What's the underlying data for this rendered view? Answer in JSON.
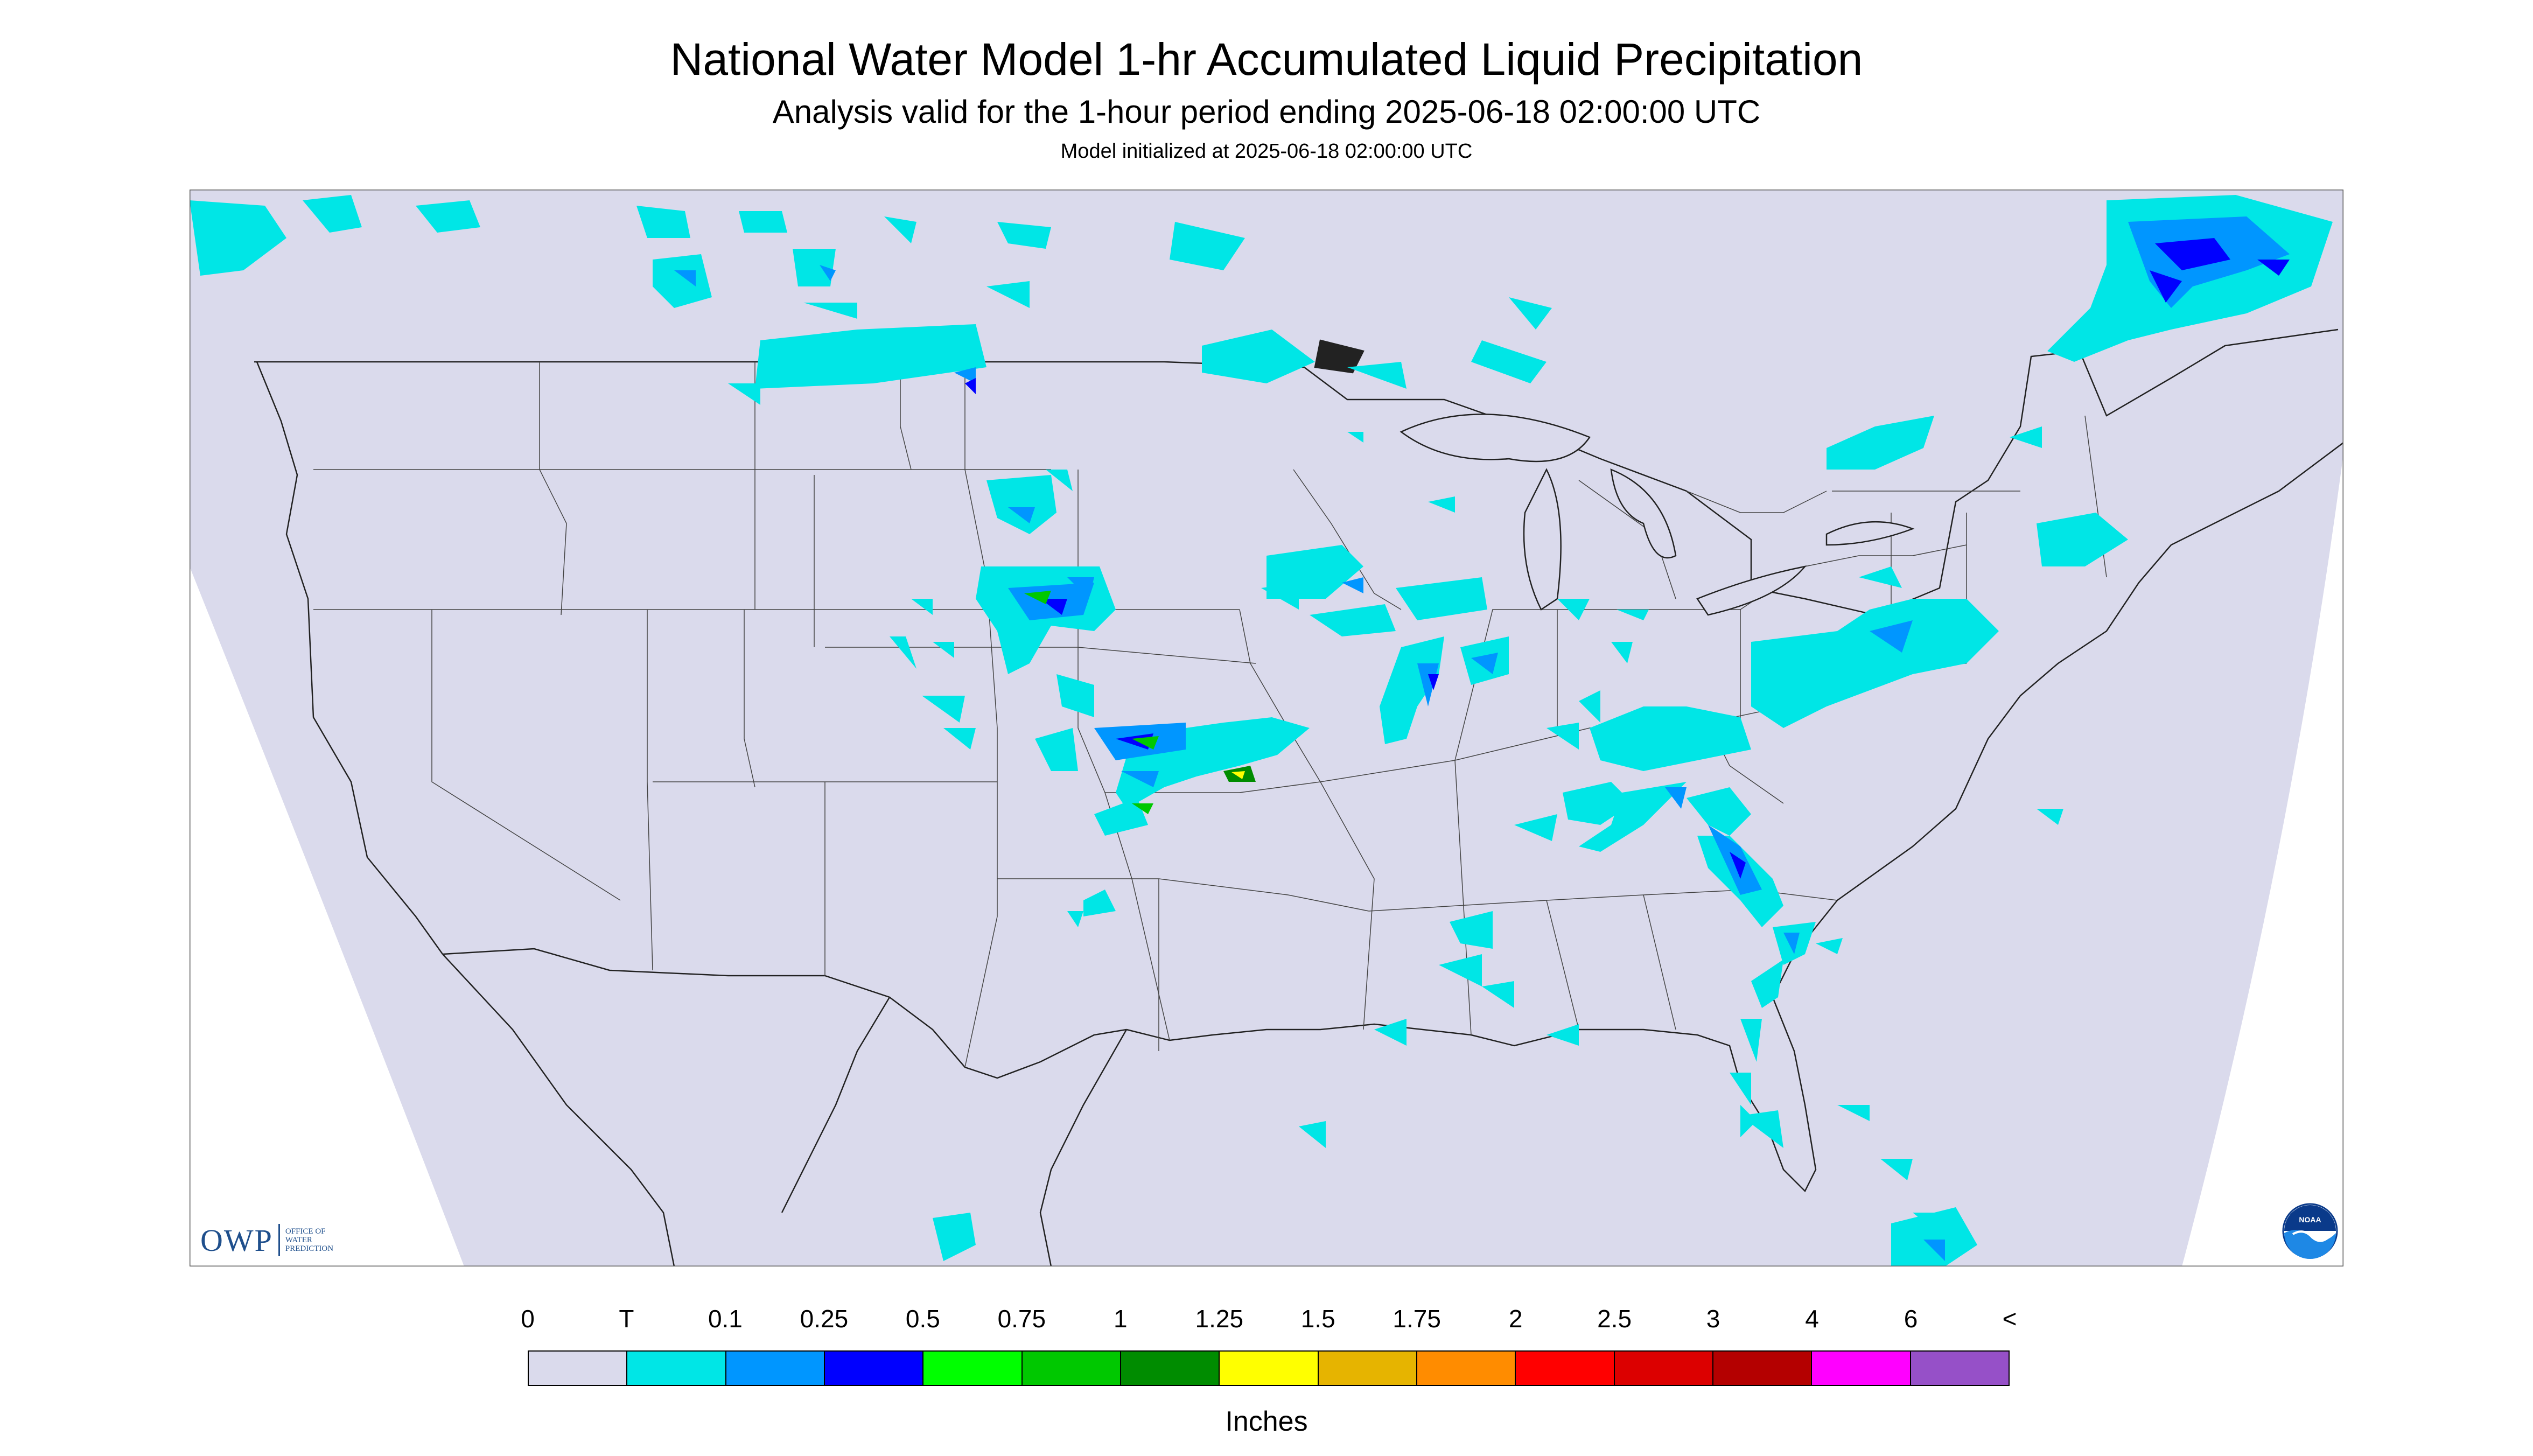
{
  "header": {
    "title": "National Water Model 1-hr Accumulated Liquid Precipitation",
    "subtitle": "Analysis valid for the 1-hour period ending 2025-06-18 02:00:00 UTC",
    "init": "Model initialized at 2025-06-18 02:00:00 UTC"
  },
  "logos": {
    "owp_abbr": "OWP",
    "owp_line1": "Office of",
    "owp_line2": "Water",
    "owp_line3": "Prediction",
    "noaa": "NOAA"
  },
  "map": {
    "background_color": "#dadaec",
    "outside_color": "#ffffff",
    "border_color": "#333333"
  },
  "legend": {
    "units": "Inches",
    "labels": [
      "0",
      "T",
      "0.1",
      "0.25",
      "0.5",
      "0.75",
      "1",
      "1.25",
      "1.5",
      "1.75",
      "2",
      "2.5",
      "3",
      "4",
      "6",
      "<"
    ],
    "colors": [
      "#dadaec",
      "#00e6e6",
      "#0096ff",
      "#0000ff",
      "#00ff00",
      "#00c800",
      "#008c00",
      "#ffff00",
      "#e6b400",
      "#ff8c00",
      "#ff0000",
      "#dc0000",
      "#b40000",
      "#ff00ff",
      "#9650c8"
    ]
  }
}
